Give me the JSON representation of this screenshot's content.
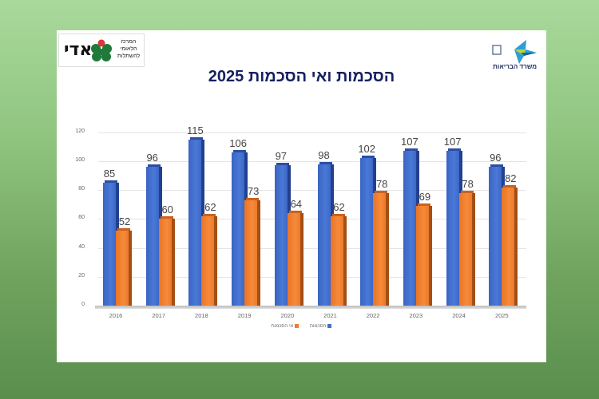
{
  "header": {
    "title": "הסכמות ואי הסכמות 2025",
    "logo_left": {
      "name": "אדי",
      "text": "המרכז הלאומי להשתלות"
    },
    "logo_right": {
      "text": "משרד הבריאות"
    }
  },
  "colors": {
    "series_1": "#4472c4",
    "series_2": "#ed7d31",
    "title": "#142060"
  },
  "chart_data": {
    "type": "bar",
    "title": "הסכמות ואי הסכמות 2025",
    "xlabel": "",
    "ylabel": "",
    "categories": [
      "2016",
      "2017",
      "2018",
      "2019",
      "2020",
      "2021",
      "2022",
      "2023",
      "2024",
      "2025"
    ],
    "series": [
      {
        "name": "הסכמות",
        "color": "#4472c4",
        "values": [
          85,
          96,
          115,
          106,
          97,
          98,
          102,
          107,
          107,
          96
        ]
      },
      {
        "name": "אי הסכמות",
        "color": "#ed7d31",
        "values": [
          52,
          60,
          62,
          73,
          64,
          62,
          78,
          69,
          78,
          82
        ]
      }
    ],
    "ylim": [
      0,
      120
    ],
    "yticks": [
      0,
      20,
      40,
      60,
      80,
      100,
      120
    ],
    "grid": true,
    "legend_position": "bottom",
    "style": "3d-clustered-column"
  },
  "legend": {
    "items": [
      "הסכמות",
      "אי הסכמות"
    ]
  }
}
